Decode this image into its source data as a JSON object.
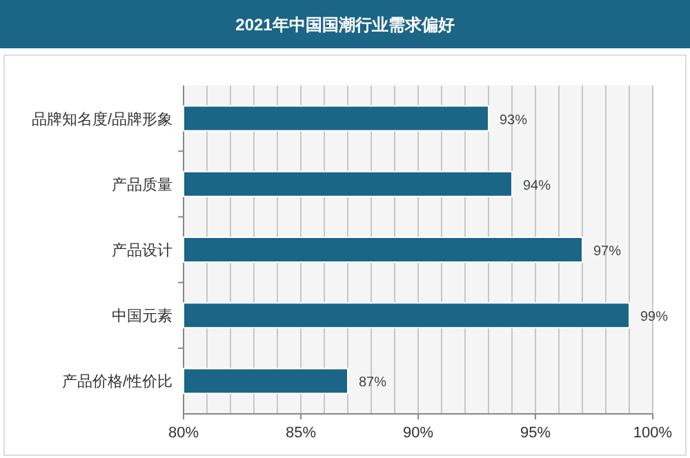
{
  "chart_data": {
    "type": "bar",
    "orientation": "horizontal",
    "title": "2021年中国国潮行业需求偏好",
    "categories": [
      "品牌知名度/品牌形象",
      "产品质量",
      "产品设计",
      "中国元素",
      "产品价格/性价比"
    ],
    "values": [
      93,
      94,
      97,
      99,
      87
    ],
    "value_labels": [
      "93%",
      "94%",
      "97%",
      "99%",
      "87%"
    ],
    "color": "#1b6587",
    "xlim": [
      80,
      100
    ],
    "xticks": [
      {
        "value": 80,
        "label": "80%"
      },
      {
        "value": 81,
        "label": null
      },
      {
        "value": 82,
        "label": null
      },
      {
        "value": 83,
        "label": null
      },
      {
        "value": 84,
        "label": null
      },
      {
        "value": 85,
        "label": "85%"
      },
      {
        "value": 86,
        "label": null
      },
      {
        "value": 87,
        "label": null
      },
      {
        "value": 88,
        "label": null
      },
      {
        "value": 89,
        "label": null
      },
      {
        "value": 90,
        "label": "90%"
      },
      {
        "value": 91,
        "label": null
      },
      {
        "value": 92,
        "label": null
      },
      {
        "value": 93,
        "label": null
      },
      {
        "value": 94,
        "label": null
      },
      {
        "value": 95,
        "label": "95%"
      },
      {
        "value": 96,
        "label": null
      },
      {
        "value": 97,
        "label": null
      },
      {
        "value": 98,
        "label": null
      },
      {
        "value": 99,
        "label": null
      },
      {
        "value": 100,
        "label": "100%"
      }
    ],
    "grid": "x"
  }
}
